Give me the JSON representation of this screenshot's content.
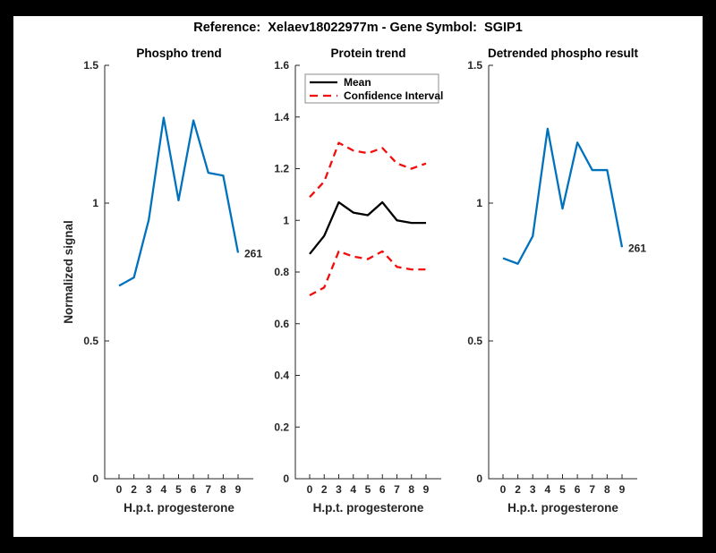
{
  "figure_title": "Reference:  Xelaev18022977m - Gene Symbol:  SGIP1",
  "colors": {
    "blue": "#0072BD",
    "red": "#F20C0C",
    "black": "#000000",
    "axis": "#262626",
    "legend_border": "#8C8C8C",
    "background": "#FFFFFF",
    "frame": "#000000"
  },
  "chart_data": [
    {
      "type": "line",
      "title": "Phospho trend",
      "xlabel": "H.p.t. progesterone",
      "ylabel": "Normalized signal",
      "x_tick_labels": [
        "0",
        "2",
        "3",
        "4",
        "5",
        "6",
        "7",
        "8",
        "9"
      ],
      "y_tick_labels": [
        "0",
        "0.5",
        "1",
        "1.5"
      ],
      "y_ticks": [
        0,
        0.5,
        1,
        1.5
      ],
      "ylim": [
        0,
        1.5
      ],
      "grid": false,
      "series": [
        {
          "name": "Phospho",
          "color_key": "blue",
          "style": "solid",
          "values": [
            0.7,
            0.73,
            0.94,
            1.31,
            1.01,
            1.3,
            1.11,
            1.1,
            0.82
          ]
        }
      ],
      "annotation": {
        "text": "261",
        "series": 0,
        "point": 8
      }
    },
    {
      "type": "line",
      "title": "Protein trend",
      "xlabel": "H.p.t. progesterone",
      "ylabel": "",
      "x_tick_labels": [
        "0",
        "2",
        "3",
        "4",
        "5",
        "6",
        "7",
        "8",
        "9"
      ],
      "y_tick_labels": [
        "0",
        "0.2",
        "0.4",
        "0.6",
        "0.8",
        "1",
        "1.2",
        "1.4",
        "1.6"
      ],
      "y_ticks": [
        0,
        0.2,
        0.4,
        0.6,
        0.8,
        1,
        1.2,
        1.4,
        1.6
      ],
      "ylim": [
        0,
        1.6
      ],
      "grid": false,
      "legend": {
        "position": "northwest",
        "entries": [
          {
            "label": "Mean",
            "color_key": "black",
            "style": "solid"
          },
          {
            "label": "Confidence Interval",
            "color_key": "red",
            "style": "dashed"
          }
        ]
      },
      "series": [
        {
          "name": "Mean",
          "color_key": "black",
          "style": "solid",
          "values": [
            0.87,
            0.94,
            1.07,
            1.03,
            1.02,
            1.07,
            1.0,
            0.99,
            0.99
          ]
        },
        {
          "name": "Confidence Interval upper",
          "color_key": "red",
          "style": "dashed",
          "values": [
            1.09,
            1.15,
            1.3,
            1.27,
            1.26,
            1.28,
            1.22,
            1.2,
            1.22
          ]
        },
        {
          "name": "Confidence Interval lower",
          "color_key": "red",
          "style": "dashed",
          "values": [
            0.71,
            0.74,
            0.88,
            0.86,
            0.85,
            0.88,
            0.82,
            0.81,
            0.81
          ]
        }
      ]
    },
    {
      "type": "line",
      "title": "Detrended phospho result",
      "xlabel": "H.p.t. progesterone",
      "ylabel": "",
      "x_tick_labels": [
        "0",
        "2",
        "3",
        "4",
        "5",
        "6",
        "7",
        "8",
        "9"
      ],
      "y_tick_labels": [
        "0",
        "0.5",
        "1",
        "1.5"
      ],
      "y_ticks": [
        0,
        0.5,
        1,
        1.5
      ],
      "ylim": [
        0,
        1.5
      ],
      "grid": false,
      "series": [
        {
          "name": "Detrended phospho",
          "color_key": "blue",
          "style": "solid",
          "values": [
            0.8,
            0.78,
            0.88,
            1.27,
            0.98,
            1.22,
            1.12,
            1.12,
            0.84
          ]
        }
      ],
      "annotation": {
        "text": "261",
        "series": 0,
        "point": 8
      }
    }
  ]
}
